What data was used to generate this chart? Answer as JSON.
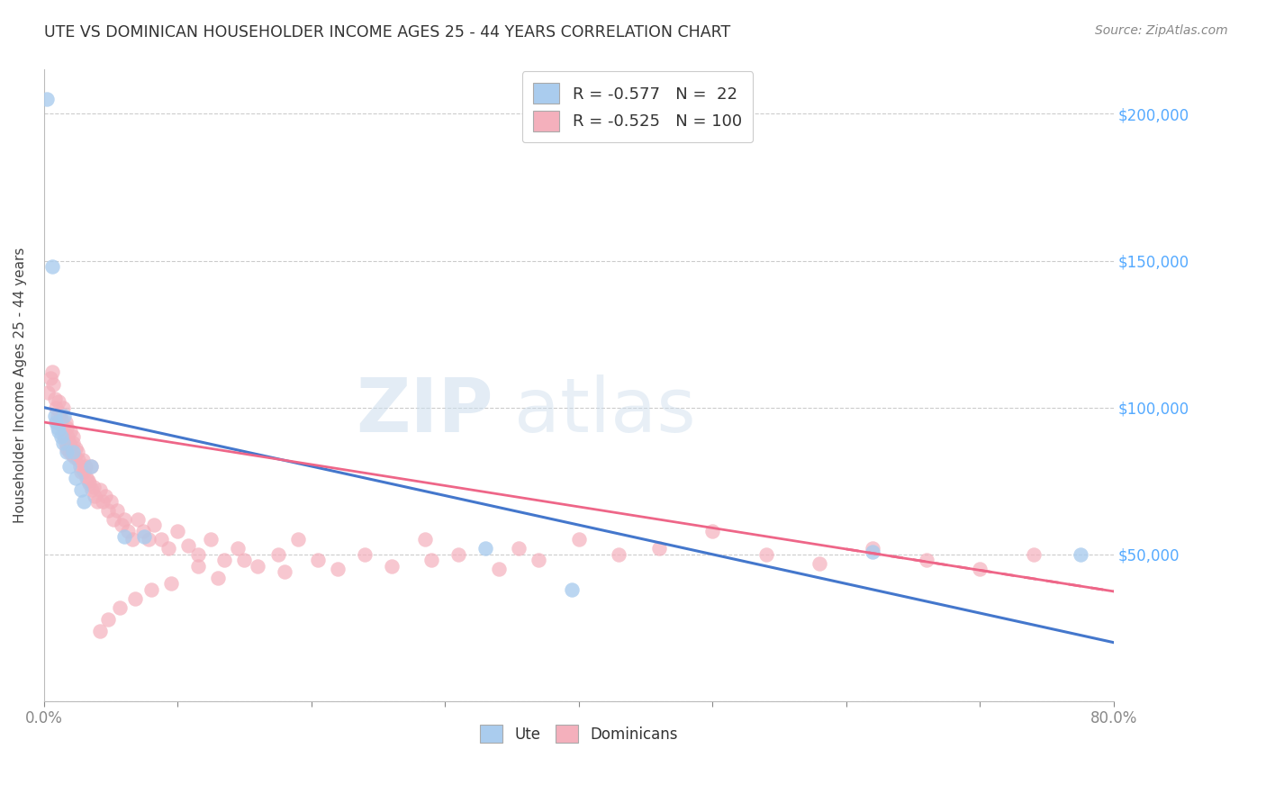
{
  "title": "UTE VS DOMINICAN HOUSEHOLDER INCOME AGES 25 - 44 YEARS CORRELATION CHART",
  "source": "Source: ZipAtlas.com",
  "ylabel": "Householder Income Ages 25 - 44 years",
  "ylabel_right_ticks": [
    "$200,000",
    "$150,000",
    "$100,000",
    "$50,000"
  ],
  "ylabel_right_vals": [
    200000,
    150000,
    100000,
    50000
  ],
  "xmin": 0.0,
  "xmax": 0.8,
  "ymin": 0,
  "ymax": 215000,
  "yticks": [
    0,
    50000,
    100000,
    150000,
    200000
  ],
  "legend_ute_R": "-0.577",
  "legend_ute_N": "22",
  "legend_dom_R": "-0.525",
  "legend_dom_N": "100",
  "ute_color": "#aaccee",
  "dom_color": "#f4b0bc",
  "ute_line_color": "#4477cc",
  "dom_line_color": "#ee6688",
  "watermark_color": "#ccdded",
  "background_color": "#ffffff",
  "grid_color": "#cccccc",
  "ute_x": [
    0.002,
    0.006,
    0.008,
    0.009,
    0.01,
    0.011,
    0.013,
    0.014,
    0.015,
    0.017,
    0.019,
    0.022,
    0.024,
    0.028,
    0.03,
    0.035,
    0.06,
    0.075,
    0.33,
    0.395,
    0.62,
    0.775
  ],
  "ute_y": [
    205000,
    148000,
    97000,
    95000,
    93000,
    92000,
    90000,
    88000,
    97000,
    85000,
    80000,
    85000,
    76000,
    72000,
    68000,
    80000,
    56000,
    56000,
    52000,
    38000,
    51000,
    50000
  ],
  "dom_x": [
    0.003,
    0.005,
    0.006,
    0.007,
    0.008,
    0.009,
    0.01,
    0.01,
    0.011,
    0.012,
    0.013,
    0.013,
    0.014,
    0.015,
    0.015,
    0.016,
    0.016,
    0.017,
    0.017,
    0.018,
    0.019,
    0.019,
    0.02,
    0.02,
    0.021,
    0.022,
    0.022,
    0.023,
    0.024,
    0.025,
    0.026,
    0.027,
    0.028,
    0.029,
    0.03,
    0.031,
    0.032,
    0.033,
    0.034,
    0.035,
    0.036,
    0.037,
    0.038,
    0.04,
    0.042,
    0.044,
    0.046,
    0.048,
    0.05,
    0.052,
    0.055,
    0.058,
    0.06,
    0.063,
    0.066,
    0.07,
    0.074,
    0.078,
    0.082,
    0.088,
    0.093,
    0.1,
    0.108,
    0.115,
    0.125,
    0.135,
    0.145,
    0.16,
    0.175,
    0.19,
    0.205,
    0.22,
    0.24,
    0.26,
    0.285,
    0.31,
    0.34,
    0.37,
    0.4,
    0.43,
    0.46,
    0.5,
    0.54,
    0.58,
    0.62,
    0.66,
    0.7,
    0.74,
    0.355,
    0.29,
    0.18,
    0.15,
    0.13,
    0.115,
    0.095,
    0.08,
    0.068,
    0.057,
    0.048,
    0.042
  ],
  "dom_y": [
    105000,
    110000,
    112000,
    108000,
    103000,
    100000,
    97000,
    95000,
    102000,
    98000,
    96000,
    94000,
    100000,
    92000,
    90000,
    95000,
    88000,
    93000,
    86000,
    90000,
    88000,
    85000,
    92000,
    87000,
    84000,
    90000,
    88000,
    83000,
    86000,
    85000,
    82000,
    80000,
    78000,
    82000,
    78000,
    80000,
    76000,
    75000,
    74000,
    80000,
    72000,
    73000,
    70000,
    68000,
    72000,
    68000,
    70000,
    65000,
    68000,
    62000,
    65000,
    60000,
    62000,
    58000,
    55000,
    62000,
    58000,
    55000,
    60000,
    55000,
    52000,
    58000,
    53000,
    50000,
    55000,
    48000,
    52000,
    46000,
    50000,
    55000,
    48000,
    45000,
    50000,
    46000,
    55000,
    50000,
    45000,
    48000,
    55000,
    50000,
    52000,
    58000,
    50000,
    47000,
    52000,
    48000,
    45000,
    50000,
    52000,
    48000,
    44000,
    48000,
    42000,
    46000,
    40000,
    38000,
    35000,
    32000,
    28000,
    24000
  ]
}
